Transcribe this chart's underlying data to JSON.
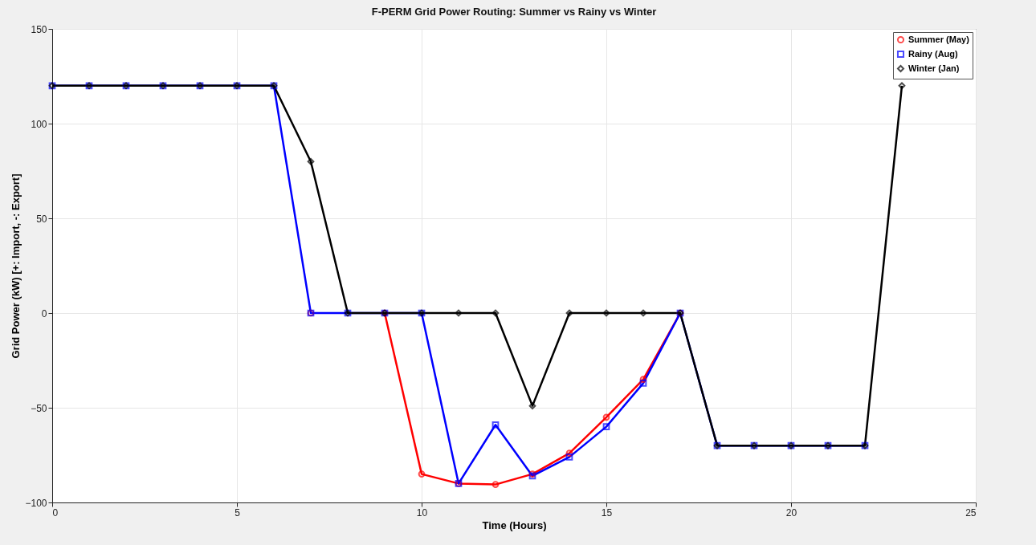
{
  "chart_data": {
    "type": "line",
    "title": "F-PERM Grid Power Routing: Summer vs Rainy vs Winter",
    "xlabel": "Time (Hours)",
    "ylabel": "Grid Power (kW) [+: Import, -: Export]",
    "x": [
      0,
      1,
      2,
      3,
      4,
      5,
      6,
      7,
      8,
      9,
      10,
      11,
      12,
      13,
      14,
      15,
      16,
      17,
      18,
      19,
      20,
      21,
      22,
      23
    ],
    "series": [
      {
        "name": "Summer (May)",
        "color": "#ff0000",
        "marker": "circle",
        "values": [
          null,
          null,
          null,
          null,
          null,
          null,
          null,
          0,
          null,
          0,
          -85,
          -90,
          -90.5,
          -85,
          -74,
          -55,
          -35,
          0,
          null,
          null,
          null,
          null,
          null,
          null
        ]
      },
      {
        "name": "Rainy (Aug)",
        "color": "#0000ff",
        "marker": "square",
        "values": [
          120,
          120,
          120,
          120,
          120,
          120,
          120,
          0,
          0,
          0,
          0,
          -90,
          -59,
          -86,
          -76,
          -60,
          -37,
          0,
          -70,
          -70,
          -70,
          -70,
          -70,
          null
        ]
      },
      {
        "name": "Winter (Jan)",
        "color": "#000000",
        "marker": "diamond",
        "values": [
          120,
          120,
          120,
          120,
          120,
          120,
          120,
          80,
          0,
          0,
          0,
          0,
          0,
          -49,
          0,
          0,
          0,
          0,
          -70,
          -70,
          -70,
          -70,
          -70,
          120
        ]
      }
    ],
    "xlim": [
      0,
      25
    ],
    "xticks": [
      0,
      5,
      10,
      15,
      20,
      25
    ],
    "ylim": [
      -100,
      150
    ],
    "yticks": [
      -100,
      -50,
      0,
      50,
      100,
      150
    ],
    "grid": true,
    "legend": "top right",
    "line_style": "solid"
  }
}
